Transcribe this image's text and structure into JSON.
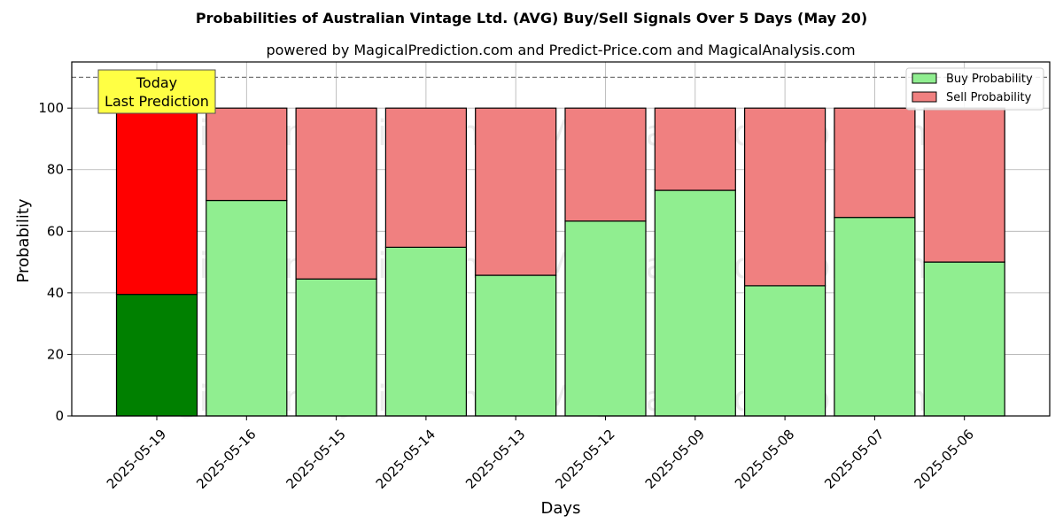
{
  "chart_data": {
    "type": "bar",
    "stacked": true,
    "title": "Probabilities of Australian Vintage Ltd. (AVG) Buy/Sell Signals Over 5 Days (May 20)",
    "subtitle": "powered by MagicalPrediction.com and Predict-Price.com and MagicalAnalysis.com",
    "xlabel": "Days",
    "ylabel": "Probability",
    "ylim": [
      0,
      115
    ],
    "yticks": [
      0,
      20,
      40,
      60,
      80,
      100
    ],
    "grid": true,
    "legend_position": "top-right",
    "reference_line": 110,
    "categories": [
      "2025-05-19",
      "2025-05-16",
      "2025-05-15",
      "2025-05-14",
      "2025-05-13",
      "2025-05-12",
      "2025-05-09",
      "2025-05-08",
      "2025-05-07",
      "2025-05-06"
    ],
    "series": [
      {
        "name": "Buy Probability",
        "color": "#90ee90",
        "highlight_color": "#008000",
        "values": [
          39.5,
          70,
          44.5,
          54.8,
          45.7,
          63.3,
          73.3,
          42.3,
          64.5,
          50
        ]
      },
      {
        "name": "Sell Probability",
        "color": "#f08080",
        "highlight_color": "#ff0000",
        "values": [
          60.5,
          30,
          55.5,
          45.2,
          54.3,
          36.7,
          26.7,
          57.7,
          35.5,
          50
        ]
      }
    ],
    "annotation": {
      "lines": [
        "Today",
        "Last Prediction"
      ],
      "category_index": 0,
      "background": "#ffff44"
    },
    "watermarks": [
      "MagicalAnalysis.com",
      "MagicalPrediction.com",
      "MagicalAnalysis.com",
      "MagicalPrediction.com",
      "MagicalAnalysis.com",
      "MagicalPrediction.com"
    ]
  }
}
